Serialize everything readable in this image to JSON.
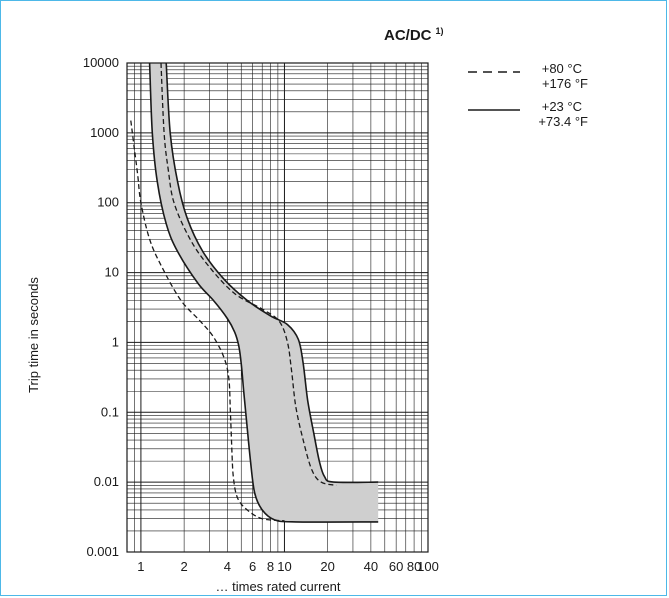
{
  "chart_data": {
    "type": "line",
    "title": "AC/DC",
    "title_note": "1)",
    "xlabel": "… times rated current",
    "ylabel": "Trip time in seconds",
    "x_scale": "log",
    "y_scale": "log",
    "xlim": [
      0.8,
      100
    ],
    "ylim": [
      0.001,
      10000
    ],
    "x_ticks": [
      {
        "value": 1,
        "label": "1"
      },
      {
        "value": 2,
        "label": "2"
      },
      {
        "value": 4,
        "label": "4"
      },
      {
        "value": 6,
        "label": "6"
      },
      {
        "value": 8,
        "label": "8"
      },
      {
        "value": 10,
        "label": "10"
      },
      {
        "value": 20,
        "label": "20"
      },
      {
        "value": 40,
        "label": "40"
      },
      {
        "value": 60,
        "label": "60"
      },
      {
        "value": 80,
        "label": "80"
      },
      {
        "value": 100,
        "label": "100"
      }
    ],
    "y_ticks": [
      {
        "value": 10000,
        "label": "10000"
      },
      {
        "value": 1000,
        "label": "1000"
      },
      {
        "value": 100,
        "label": "100"
      },
      {
        "value": 10,
        "label": "10"
      },
      {
        "value": 1,
        "label": "1"
      },
      {
        "value": 0.1,
        "label": "0.1"
      },
      {
        "value": 0.01,
        "label": "0.01"
      },
      {
        "value": 0.001,
        "label": "0.001"
      }
    ],
    "grid": true,
    "band_color": "#cfcfcf",
    "series": [
      {
        "name": "+23 °C / +73.4 °F (lower limit)",
        "style": "solid",
        "points": [
          [
            1.15,
            10000
          ],
          [
            1.2,
            1000
          ],
          [
            1.3,
            200
          ],
          [
            1.5,
            50
          ],
          [
            1.8,
            20
          ],
          [
            2.5,
            7
          ],
          [
            3.2,
            4
          ],
          [
            4.0,
            2.2
          ],
          [
            4.5,
            1.4
          ],
          [
            4.8,
            0.9
          ],
          [
            5.0,
            0.5
          ],
          [
            5.2,
            0.2
          ],
          [
            5.5,
            0.06
          ],
          [
            5.8,
            0.02
          ],
          [
            6.2,
            0.007
          ],
          [
            7.0,
            0.004
          ],
          [
            8.5,
            0.0029
          ],
          [
            12,
            0.0027
          ],
          [
            45,
            0.0027
          ]
        ]
      },
      {
        "name": "+23 °C / +73.4 °F (upper limit)",
        "style": "solid",
        "points": [
          [
            1.5,
            10000
          ],
          [
            1.6,
            1000
          ],
          [
            1.8,
            200
          ],
          [
            2.1,
            60
          ],
          [
            2.7,
            20
          ],
          [
            3.8,
            8
          ],
          [
            5.5,
            4
          ],
          [
            8.0,
            2.4
          ],
          [
            10.5,
            1.8
          ],
          [
            12.5,
            1.1
          ],
          [
            13.5,
            0.5
          ],
          [
            14.5,
            0.15
          ],
          [
            16,
            0.05
          ],
          [
            17.5,
            0.02
          ],
          [
            19,
            0.012
          ],
          [
            22,
            0.01
          ],
          [
            45,
            0.01
          ]
        ]
      },
      {
        "name": "+80 °C / +176 °F (lower limit)",
        "style": "dashed",
        "points": [
          [
            0.85,
            1500
          ],
          [
            0.9,
            600
          ],
          [
            0.95,
            250
          ],
          [
            1.0,
            100
          ],
          [
            1.15,
            30
          ],
          [
            1.4,
            12
          ],
          [
            1.9,
            4
          ],
          [
            2.6,
            2
          ],
          [
            3.2,
            1.2
          ],
          [
            3.8,
            0.6
          ],
          [
            4.1,
            0.3
          ],
          [
            4.2,
            0.1
          ],
          [
            4.3,
            0.03
          ],
          [
            4.4,
            0.012
          ],
          [
            4.7,
            0.006
          ],
          [
            5.5,
            0.004
          ],
          [
            7.0,
            0.003
          ],
          [
            10,
            0.0028
          ]
        ]
      },
      {
        "name": "+80 °C / +176 °F (upper limit)",
        "style": "dashed",
        "points": [
          [
            1.38,
            10000
          ],
          [
            1.45,
            1000
          ],
          [
            1.55,
            300
          ],
          [
            1.7,
            100
          ],
          [
            2.2,
            30
          ],
          [
            3.0,
            12
          ],
          [
            4.5,
            5
          ],
          [
            7.0,
            3.0
          ],
          [
            9.2,
            2.0
          ],
          [
            10.5,
            1.0
          ],
          [
            11.2,
            0.4
          ],
          [
            12.0,
            0.12
          ],
          [
            13.5,
            0.04
          ],
          [
            15.5,
            0.015
          ],
          [
            18,
            0.01
          ],
          [
            23,
            0.009
          ]
        ]
      }
    ],
    "legend": {
      "placement": "top-right",
      "entries": [
        {
          "style": "dashed",
          "line1": "+80 °C",
          "line2": "+176 °F"
        },
        {
          "style": "solid",
          "line1": "+23 °C",
          "line2": "+73.4 °F"
        }
      ]
    }
  }
}
